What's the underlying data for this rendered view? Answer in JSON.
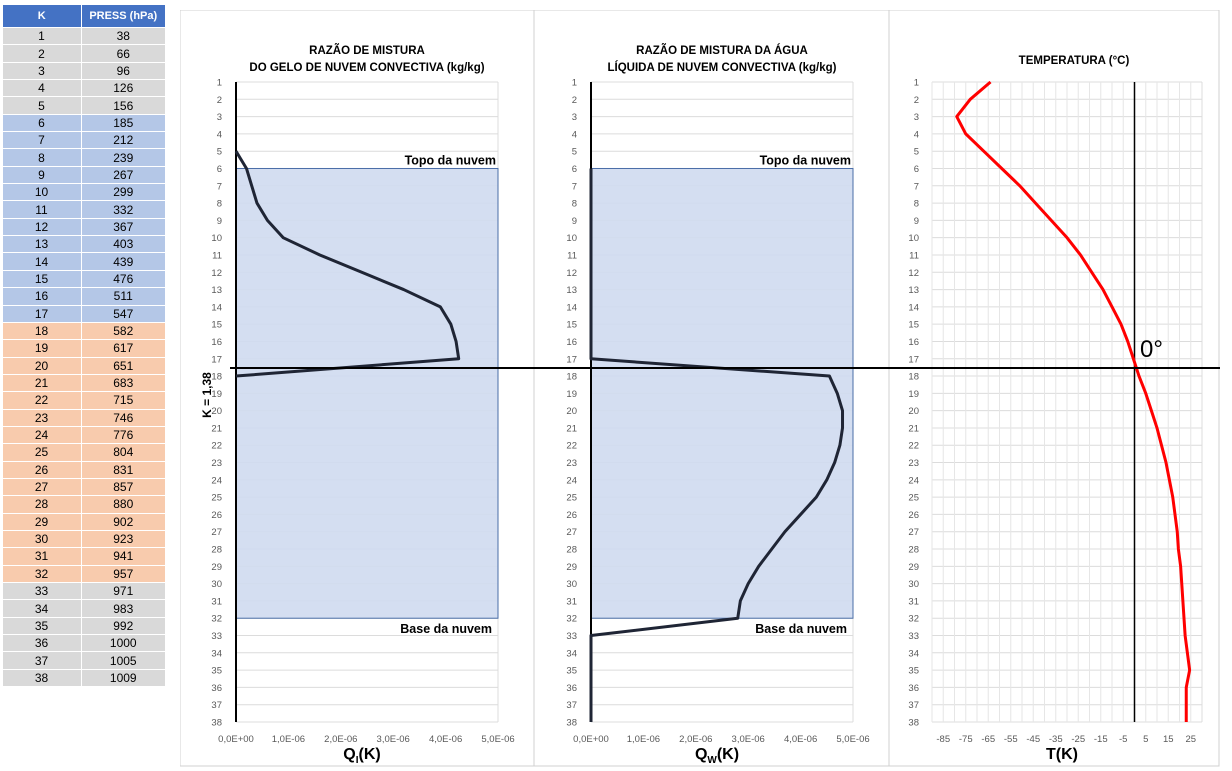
{
  "table": {
    "header_k": "K",
    "header_press": "PRESS (hPa)",
    "rows": [
      {
        "k": "1",
        "press": "38",
        "band": "gray"
      },
      {
        "k": "2",
        "press": "66",
        "band": "gray"
      },
      {
        "k": "3",
        "press": "96",
        "band": "gray"
      },
      {
        "k": "4",
        "press": "126",
        "band": "gray"
      },
      {
        "k": "5",
        "press": "156",
        "band": "gray"
      },
      {
        "k": "6",
        "press": "185",
        "band": "blue"
      },
      {
        "k": "7",
        "press": "212",
        "band": "blue"
      },
      {
        "k": "8",
        "press": "239",
        "band": "blue"
      },
      {
        "k": "9",
        "press": "267",
        "band": "blue"
      },
      {
        "k": "10",
        "press": "299",
        "band": "blue"
      },
      {
        "k": "11",
        "press": "332",
        "band": "blue"
      },
      {
        "k": "12",
        "press": "367",
        "band": "blue"
      },
      {
        "k": "13",
        "press": "403",
        "band": "blue"
      },
      {
        "k": "14",
        "press": "439",
        "band": "blue"
      },
      {
        "k": "15",
        "press": "476",
        "band": "blue"
      },
      {
        "k": "16",
        "press": "511",
        "band": "blue"
      },
      {
        "k": "17",
        "press": "547",
        "band": "blue"
      },
      {
        "k": "18",
        "press": "582",
        "band": "orange"
      },
      {
        "k": "19",
        "press": "617",
        "band": "orange"
      },
      {
        "k": "20",
        "press": "651",
        "band": "orange"
      },
      {
        "k": "21",
        "press": "683",
        "band": "orange"
      },
      {
        "k": "22",
        "press": "715",
        "band": "orange"
      },
      {
        "k": "23",
        "press": "746",
        "band": "orange"
      },
      {
        "k": "24",
        "press": "776",
        "band": "orange"
      },
      {
        "k": "25",
        "press": "804",
        "band": "orange"
      },
      {
        "k": "26",
        "press": "831",
        "band": "orange"
      },
      {
        "k": "27",
        "press": "857",
        "band": "orange"
      },
      {
        "k": "28",
        "press": "880",
        "band": "orange"
      },
      {
        "k": "29",
        "press": "902",
        "band": "orange"
      },
      {
        "k": "30",
        "press": "923",
        "band": "orange"
      },
      {
        "k": "31",
        "press": "941",
        "band": "orange"
      },
      {
        "k": "32",
        "press": "957",
        "band": "orange"
      },
      {
        "k": "33",
        "press": "971",
        "band": "gray"
      },
      {
        "k": "34",
        "press": "983",
        "band": "gray"
      },
      {
        "k": "35",
        "press": "992",
        "band": "gray"
      },
      {
        "k": "36",
        "press": "1000",
        "band": "gray"
      },
      {
        "k": "37",
        "press": "1005",
        "band": "gray"
      },
      {
        "k": "38",
        "press": "1009",
        "band": "gray"
      }
    ]
  },
  "colors": {
    "header_blue": "#4472c4",
    "row_gray": "#d9d9d9",
    "row_blue": "#b4c7e7",
    "row_orange": "#f8cbad",
    "cloud_fill": "#cfdaf0",
    "cloud_stroke": "#4a6da7",
    "profile_line": "#1f2535",
    "temperature_line": "#ff0000"
  },
  "annotations": {
    "freezing_level_label": "K = 1,38",
    "cloud_top": "Topo da nuvem",
    "cloud_base": "Base da nuvem",
    "zero_deg": "0°"
  },
  "chart_data": [
    {
      "type": "line",
      "title_line1": "RAZÃO DE MISTURA",
      "title_line2": "DO GELO DE NUVEM CONVECTIVA (kg/kg)",
      "xlabel_main": "Q",
      "xlabel_sub": "I",
      "xlabel_tail": "(K)",
      "xlim": [
        0,
        5e-06
      ],
      "x_ticks": [
        "0,0E+00",
        "1,0E-06",
        "2,0E-06",
        "3,0E-06",
        "4,0E-06",
        "5,0E-06"
      ],
      "y_ticks": [
        "1",
        "2",
        "3",
        "4",
        "5",
        "6",
        "7",
        "8",
        "9",
        "10",
        "11",
        "12",
        "13",
        "14",
        "15",
        "16",
        "17",
        "18",
        "19",
        "20",
        "21",
        "22",
        "23",
        "24",
        "25",
        "26",
        "27",
        "28",
        "29",
        "30",
        "31",
        "32",
        "33",
        "34",
        "35",
        "36",
        "37",
        "38"
      ],
      "cloud_band_k": [
        6,
        32
      ],
      "points": [
        [
          0,
          5
        ],
        [
          2e-07,
          6
        ],
        [
          3e-07,
          7
        ],
        [
          4e-07,
          8
        ],
        [
          6e-07,
          9
        ],
        [
          9e-07,
          10
        ],
        [
          1.6e-06,
          11
        ],
        [
          2.4e-06,
          12
        ],
        [
          3.2e-06,
          13
        ],
        [
          3.9e-06,
          14
        ],
        [
          4.1e-06,
          15
        ],
        [
          4.2e-06,
          16
        ],
        [
          4.25e-06,
          17
        ],
        [
          0,
          18
        ]
      ]
    },
    {
      "type": "line",
      "title_line1": "RAZÃO DE MISTURA DA ÁGUA",
      "title_line2": "LÍQUIDA DE NUVEM CONVECTIVA (kg/kg)",
      "xlabel_main": "Q",
      "xlabel_sub": "W",
      "xlabel_tail": "(K)",
      "xlim": [
        0,
        5e-06
      ],
      "x_ticks": [
        "0,0E+00",
        "1,0E-06",
        "2,0E-06",
        "3,0E-06",
        "4,0E-06",
        "5,0E-06"
      ],
      "y_ticks": [
        "1",
        "2",
        "3",
        "4",
        "5",
        "6",
        "7",
        "8",
        "9",
        "10",
        "11",
        "12",
        "13",
        "14",
        "15",
        "16",
        "17",
        "18",
        "19",
        "20",
        "21",
        "22",
        "23",
        "24",
        "25",
        "26",
        "27",
        "28",
        "29",
        "30",
        "31",
        "32",
        "33",
        "34",
        "35",
        "36",
        "37",
        "38"
      ],
      "cloud_band_k": [
        6,
        32
      ],
      "points": [
        [
          0,
          6
        ],
        [
          0,
          17
        ],
        [
          4.55e-06,
          18
        ],
        [
          4.7e-06,
          19
        ],
        [
          4.8e-06,
          20
        ],
        [
          4.8e-06,
          21
        ],
        [
          4.75e-06,
          22
        ],
        [
          4.65e-06,
          23
        ],
        [
          4.5e-06,
          24
        ],
        [
          4.3e-06,
          25
        ],
        [
          4e-06,
          26
        ],
        [
          3.7e-06,
          27
        ],
        [
          3.45e-06,
          28
        ],
        [
          3.2e-06,
          29
        ],
        [
          3e-06,
          30
        ],
        [
          2.85e-06,
          31
        ],
        [
          2.8e-06,
          32
        ],
        [
          0,
          33
        ],
        [
          0,
          38
        ]
      ]
    },
    {
      "type": "line",
      "title_line1": "",
      "title_line2": "TEMPERATURA (°C)",
      "xlabel_main": "T",
      "xlabel_sub": "",
      "xlabel_tail": "(K)",
      "xlim": [
        -90,
        30
      ],
      "x_ticks": [
        "-85",
        "-75",
        "-65",
        "-55",
        "-45",
        "-35",
        "-25",
        "-15",
        "-5",
        "5",
        "15",
        "25"
      ],
      "x_tick_values": [
        -85,
        -75,
        -65,
        -55,
        -45,
        -35,
        -25,
        -15,
        -5,
        5,
        15,
        25
      ],
      "y_ticks": [
        "1",
        "2",
        "3",
        "4",
        "5",
        "6",
        "7",
        "8",
        "9",
        "10",
        "11",
        "12",
        "13",
        "14",
        "15",
        "16",
        "17",
        "18",
        "19",
        "20",
        "21",
        "22",
        "23",
        "24",
        "25",
        "26",
        "27",
        "28",
        "29",
        "30",
        "31",
        "32",
        "33",
        "34",
        "35",
        "36",
        "37",
        "38"
      ],
      "points": [
        [
          -64,
          1
        ],
        [
          -73,
          2
        ],
        [
          -79,
          3
        ],
        [
          -75,
          4
        ],
        [
          -67,
          5
        ],
        [
          -59,
          6
        ],
        [
          -51,
          7
        ],
        [
          -44,
          8
        ],
        [
          -37,
          9
        ],
        [
          -30,
          10
        ],
        [
          -24,
          11
        ],
        [
          -19,
          12
        ],
        [
          -14,
          13
        ],
        [
          -10,
          14
        ],
        [
          -6,
          15
        ],
        [
          -3,
          16
        ],
        [
          -0.5,
          17
        ],
        [
          2,
          18
        ],
        [
          5,
          19
        ],
        [
          7.5,
          20
        ],
        [
          10,
          21
        ],
        [
          12,
          22
        ],
        [
          14,
          23
        ],
        [
          15.5,
          24
        ],
        [
          17,
          25
        ],
        [
          18,
          26
        ],
        [
          19,
          27
        ],
        [
          19.5,
          28
        ],
        [
          20.5,
          29
        ],
        [
          21,
          30
        ],
        [
          21.5,
          31
        ],
        [
          22,
          32
        ],
        [
          22.5,
          33
        ],
        [
          23.5,
          34
        ],
        [
          24.5,
          35
        ],
        [
          23,
          36
        ],
        [
          23,
          37
        ],
        [
          23,
          38
        ]
      ]
    }
  ]
}
